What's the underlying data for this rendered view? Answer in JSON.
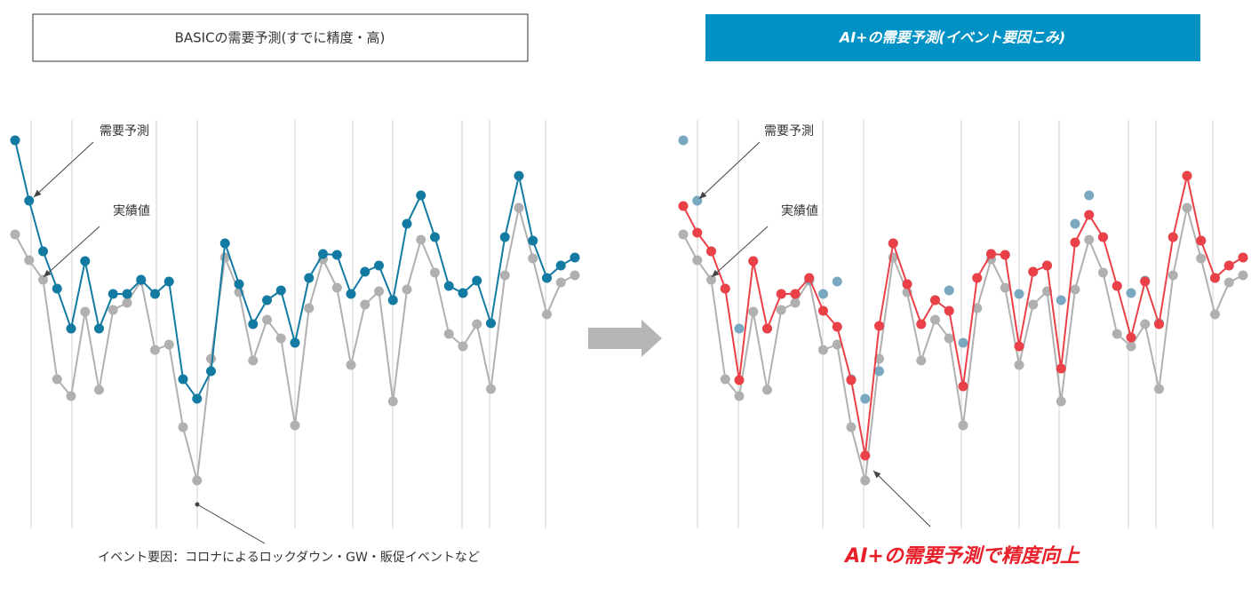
{
  "chart_data": [
    {
      "type": "line",
      "title": "BASICの需要予測(すでに精度・高)",
      "annotations": [
        "需要予測",
        "実績値",
        "イベント要因：コロナによるロックダウン・GW・販促イベントなど"
      ],
      "ylim": [
        0,
        470
      ],
      "grid": true,
      "series": [
        {
          "color": "#b0b0b0",
          "line": true,
          "values": [
            336,
            307,
            285,
            173,
            154,
            249,
            161,
            251,
            259,
            284,
            206,
            212,
            119,
            59,
            196,
            310,
            271,
            194,
            240,
            219,
            121,
            253,
            308,
            276,
            189,
            257,
            272,
            148,
            274,
            330,
            293,
            224,
            210,
            235,
            162,
            290,
            366,
            309,
            246,
            282,
            290
          ]
        },
        {
          "color": "#137aa2",
          "line": true,
          "values": [
            442,
            374,
            317,
            275,
            230,
            306,
            230,
            269,
            269,
            285,
            269,
            283,
            173,
            151,
            182,
            326,
            280,
            235,
            262,
            273,
            214,
            287,
            314,
            313,
            269,
            294,
            301,
            262,
            348,
            380,
            333,
            278,
            270,
            284,
            236,
            333,
            402,
            329,
            287,
            301,
            310
          ]
        }
      ]
    },
    {
      "type": "line",
      "title": "AI+の需要予測(イベント要因こみ)",
      "annotations": [
        "需要予測",
        "実績値",
        "AI+の需要予測で精度向上"
      ],
      "ylim": [
        0,
        470
      ],
      "grid": true,
      "series": [
        {
          "color": "#b0b0b0",
          "line": true,
          "values": [
            336,
            307,
            285,
            173,
            154,
            249,
            161,
            251,
            259,
            284,
            206,
            212,
            119,
            59,
            196,
            310,
            271,
            194,
            240,
            219,
            121,
            253,
            308,
            276,
            189,
            257,
            272,
            148,
            274,
            330,
            293,
            224,
            210,
            235,
            162,
            290,
            366,
            309,
            246,
            282,
            290
          ]
        },
        {
          "color": "#7aa8c0",
          "line": false,
          "values": [
            442,
            374,
            317,
            275,
            230,
            306,
            230,
            269,
            269,
            285,
            269,
            283,
            173,
            151,
            182,
            326,
            280,
            235,
            262,
            273,
            214,
            287,
            314,
            313,
            269,
            294,
            301,
            262,
            348,
            380,
            333,
            278,
            270,
            284,
            236,
            333,
            402,
            329,
            287,
            301,
            310
          ]
        },
        {
          "color": "#ea4149",
          "line": true,
          "values": [
            368,
            338,
            317,
            275,
            172,
            306,
            230,
            269,
            269,
            287,
            250,
            232,
            172,
            87,
            233,
            326,
            280,
            235,
            262,
            250,
            165,
            287,
            314,
            313,
            210,
            294,
            301,
            185,
            327,
            358,
            333,
            278,
            220,
            283,
            235,
            333,
            402,
            329,
            287,
            301,
            310
          ]
        }
      ]
    }
  ]
}
